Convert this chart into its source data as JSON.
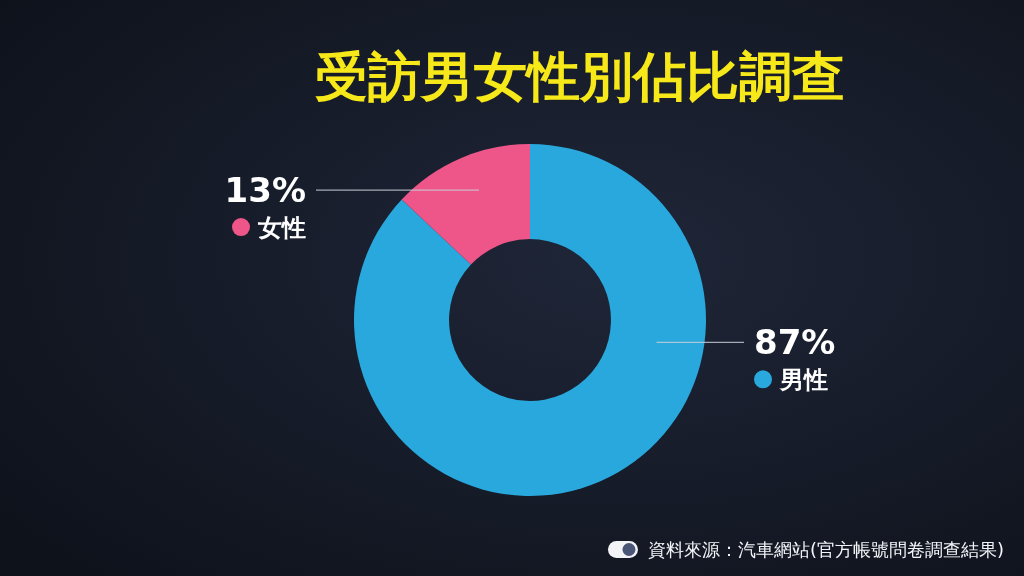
{
  "chart_data": {
    "type": "donut",
    "title": "受訪男女性別佔比調查",
    "categories": [
      "男性",
      "女性"
    ],
    "values": [
      87,
      13
    ],
    "colors": [
      "#29a8dd",
      "#ee5589"
    ],
    "value_labels": [
      "87%",
      "13%"
    ],
    "legend": "left",
    "annotations": [
      "資料來源：汽車網站(官方帳號問卷調查結果)"
    ]
  }
}
